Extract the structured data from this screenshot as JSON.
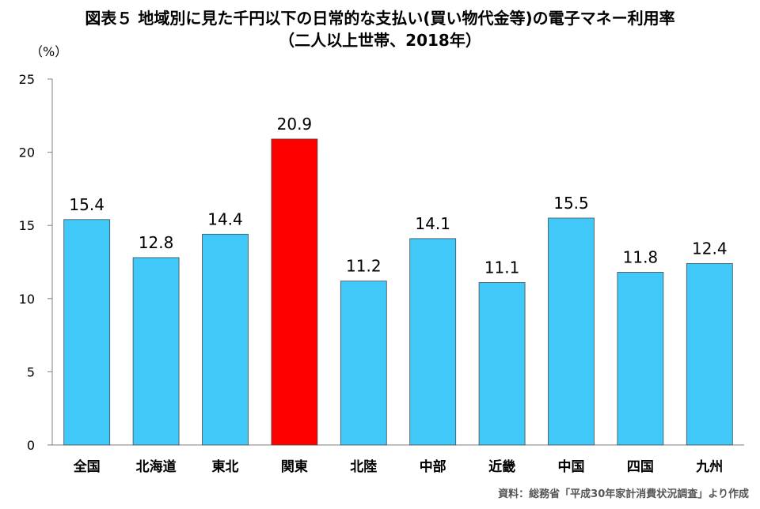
{
  "title": "図表５ 地域別に見た千円以下の日常的な支払い(買い物代金等)の電子マネー利用率",
  "subtitle": "（二人以上世帯、2018年）",
  "unit_label": "（%）",
  "source": "資料：総務省「平成30年家計消費状況調査」より作成",
  "colors": {
    "default_bar": "#40c8f8",
    "highlight_bar": "#ff0000",
    "axis": "#808080"
  },
  "chart_data": {
    "type": "bar",
    "categories": [
      "全国",
      "北海道",
      "東北",
      "関東",
      "北陸",
      "中部",
      "近畿",
      "中国",
      "四国",
      "九州"
    ],
    "values": [
      15.4,
      12.8,
      14.4,
      20.9,
      11.2,
      14.1,
      11.1,
      15.5,
      11.8,
      12.4
    ],
    "highlight_index": 3,
    "ylim": [
      0,
      25
    ],
    "yticks": [
      0,
      5,
      10,
      15,
      20,
      25
    ],
    "xlabel": "",
    "ylabel": "",
    "grid": false,
    "data_labels": true
  }
}
